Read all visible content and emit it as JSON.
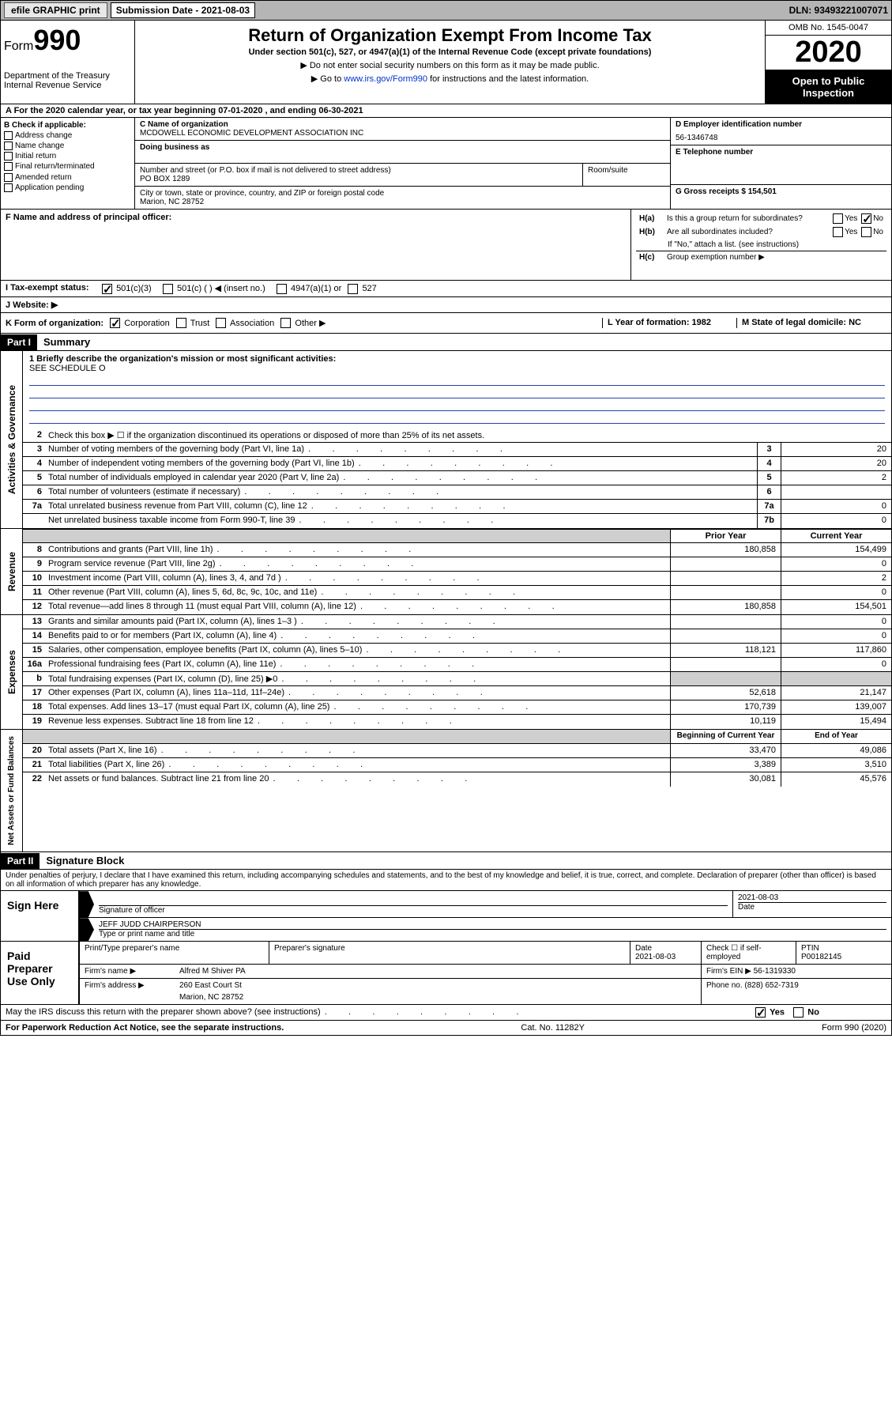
{
  "topbar": {
    "efile": "efile GRAPHIC print",
    "sublabel": "Submission Date - 2021-08-03",
    "dln": "DLN: 93493221007071"
  },
  "header": {
    "form_prefix": "Form",
    "form_num": "990",
    "dept": "Department of the Treasury",
    "irs": "Internal Revenue Service",
    "title": "Return of Organization Exempt From Income Tax",
    "sub": "Under section 501(c), 527, or 4947(a)(1) of the Internal Revenue Code (except private foundations)",
    "note1": "▶ Do not enter social security numbers on this form as it may be made public.",
    "note2_pre": "▶ Go to ",
    "note2_link": "www.irs.gov/Form990",
    "note2_post": " for instructions and the latest information.",
    "omb": "OMB No. 1545-0047",
    "year": "2020",
    "otp": "Open to Public Inspection"
  },
  "period": "A For the 2020 calendar year, or tax year beginning 07-01-2020   , and ending 06-30-2021",
  "sectionB": {
    "label": "B Check if applicable:",
    "items": [
      "Address change",
      "Name change",
      "Initial return",
      "Final return/terminated",
      "Amended return",
      "Application pending"
    ]
  },
  "sectionC": {
    "name_label": "C Name of organization",
    "name": "MCDOWELL ECONOMIC DEVELOPMENT ASSOCIATION INC",
    "dba_label": "Doing business as",
    "addr_label": "Number and street (or P.O. box if mail is not delivered to street address)",
    "room_label": "Room/suite",
    "addr": "PO BOX 1289",
    "city_label": "City or town, state or province, country, and ZIP or foreign postal code",
    "city": "Marion, NC  28752",
    "f_label": "F Name and address of principal officer:"
  },
  "sectionD": {
    "ein_label": "D Employer identification number",
    "ein": "56-1346748",
    "tel_label": "E Telephone number",
    "gross_label": "G Gross receipts $ 154,501"
  },
  "sectionH": {
    "a": "H(a)  Is this a group return for subordinates?",
    "b": "H(b)  Are all subordinates included?",
    "b_note": "If \"No,\" attach a list. (see instructions)",
    "c": "H(c)  Group exemption number ▶",
    "yes": "Yes",
    "no": "No"
  },
  "rowI": {
    "label": "I   Tax-exempt status:",
    "opt1": "501(c)(3)",
    "opt2": "501(c) (  ) ◀ (insert no.)",
    "opt3": "4947(a)(1) or",
    "opt4": "527"
  },
  "rowJ": {
    "label": "J   Website: ▶"
  },
  "rowK": {
    "label": "K Form of organization:",
    "corp": "Corporation",
    "trust": "Trust",
    "assoc": "Association",
    "other": "Other ▶",
    "l_label": "L Year of formation: 1982",
    "m_label": "M State of legal domicile: NC"
  },
  "part1": {
    "hdr": "Part I",
    "title": "Summary",
    "mission_label": "1  Briefly describe the organization's mission or most significant activities:",
    "mission": "SEE SCHEDULE O"
  },
  "governance": {
    "title": "Activities & Governance",
    "lines": [
      {
        "n": "2",
        "desc": "Check this box ▶ ☐  if the organization discontinued its operations or disposed of more than 25% of its net assets."
      },
      {
        "n": "3",
        "desc": "Number of voting members of the governing body (Part VI, line 1a)",
        "box": "3",
        "val": "20"
      },
      {
        "n": "4",
        "desc": "Number of independent voting members of the governing body (Part VI, line 1b)",
        "box": "4",
        "val": "20"
      },
      {
        "n": "5",
        "desc": "Total number of individuals employed in calendar year 2020 (Part V, line 2a)",
        "box": "5",
        "val": "2"
      },
      {
        "n": "6",
        "desc": "Total number of volunteers (estimate if necessary)",
        "box": "6",
        "val": ""
      },
      {
        "n": "7a",
        "desc": "Total unrelated business revenue from Part VIII, column (C), line 12",
        "box": "7a",
        "val": "0"
      },
      {
        "n": "",
        "desc": "Net unrelated business taxable income from Form 990-T, line 39",
        "box": "7b",
        "val": "0"
      }
    ]
  },
  "revenue": {
    "title": "Revenue",
    "hdr_prior": "Prior Year",
    "hdr_curr": "Current Year",
    "lines": [
      {
        "n": "8",
        "desc": "Contributions and grants (Part VIII, line 1h)",
        "prior": "180,858",
        "curr": "154,499"
      },
      {
        "n": "9",
        "desc": "Program service revenue (Part VIII, line 2g)",
        "prior": "",
        "curr": "0"
      },
      {
        "n": "10",
        "desc": "Investment income (Part VIII, column (A), lines 3, 4, and 7d )",
        "prior": "",
        "curr": "2"
      },
      {
        "n": "11",
        "desc": "Other revenue (Part VIII, column (A), lines 5, 6d, 8c, 9c, 10c, and 11e)",
        "prior": "",
        "curr": "0"
      },
      {
        "n": "12",
        "desc": "Total revenue—add lines 8 through 11 (must equal Part VIII, column (A), line 12)",
        "prior": "180,858",
        "curr": "154,501"
      }
    ]
  },
  "expenses": {
    "title": "Expenses",
    "lines": [
      {
        "n": "13",
        "desc": "Grants and similar amounts paid (Part IX, column (A), lines 1–3 )",
        "prior": "",
        "curr": "0"
      },
      {
        "n": "14",
        "desc": "Benefits paid to or for members (Part IX, column (A), line 4)",
        "prior": "",
        "curr": "0"
      },
      {
        "n": "15",
        "desc": "Salaries, other compensation, employee benefits (Part IX, column (A), lines 5–10)",
        "prior": "118,121",
        "curr": "117,860"
      },
      {
        "n": "16a",
        "desc": "Professional fundraising fees (Part IX, column (A), line 11e)",
        "prior": "",
        "curr": "0"
      },
      {
        "n": "b",
        "desc": "Total fundraising expenses (Part IX, column (D), line 25) ▶0",
        "prior": "grey",
        "curr": "grey"
      },
      {
        "n": "17",
        "desc": "Other expenses (Part IX, column (A), lines 11a–11d, 11f–24e)",
        "prior": "52,618",
        "curr": "21,147"
      },
      {
        "n": "18",
        "desc": "Total expenses. Add lines 13–17 (must equal Part IX, column (A), line 25)",
        "prior": "170,739",
        "curr": "139,007"
      },
      {
        "n": "19",
        "desc": "Revenue less expenses. Subtract line 18 from line 12",
        "prior": "10,119",
        "curr": "15,494"
      }
    ]
  },
  "netassets": {
    "title": "Net Assets or Fund Balances",
    "hdr_begin": "Beginning of Current Year",
    "hdr_end": "End of Year",
    "lines": [
      {
        "n": "20",
        "desc": "Total assets (Part X, line 16)",
        "prior": "33,470",
        "curr": "49,086"
      },
      {
        "n": "21",
        "desc": "Total liabilities (Part X, line 26)",
        "prior": "3,389",
        "curr": "3,510"
      },
      {
        "n": "22",
        "desc": "Net assets or fund balances. Subtract line 21 from line 20",
        "prior": "30,081",
        "curr": "45,576"
      }
    ]
  },
  "part2": {
    "hdr": "Part II",
    "title": "Signature Block",
    "declar": "Under penalties of perjury, I declare that I have examined this return, including accompanying schedules and statements, and to the best of my knowledge and belief, it is true, correct, and complete. Declaration of preparer (other than officer) is based on all information of which preparer has any knowledge."
  },
  "sign": {
    "label": "Sign Here",
    "sig_officer": "Signature of officer",
    "date": "2021-08-03",
    "date_label": "Date",
    "name": "JEFF JUDD CHAIRPERSON",
    "name_label": "Type or print name and title"
  },
  "paid": {
    "label": "Paid Preparer Use Only",
    "h1": "Print/Type preparer's name",
    "h2": "Preparer's signature",
    "h3": "Date",
    "h3v": "2021-08-03",
    "h4": "Check ☐ if self-employed",
    "h5": "PTIN",
    "h5v": "P00182145",
    "firm_name_label": "Firm's name    ▶",
    "firm_name": "Alfred M Shiver PA",
    "firm_ein": "Firm's EIN ▶ 56-1319330",
    "firm_addr_label": "Firm's address ▶",
    "firm_addr": "260 East Court St",
    "firm_city": "Marion, NC  28752",
    "phone": "Phone no. (828) 652-7319"
  },
  "discuss": {
    "q": "May the IRS discuss this return with the preparer shown above? (see instructions)",
    "yes": "Yes",
    "no": "No"
  },
  "footer": {
    "left": "For Paperwork Reduction Act Notice, see the separate instructions.",
    "mid": "Cat. No. 11282Y",
    "right": "Form 990 (2020)"
  }
}
